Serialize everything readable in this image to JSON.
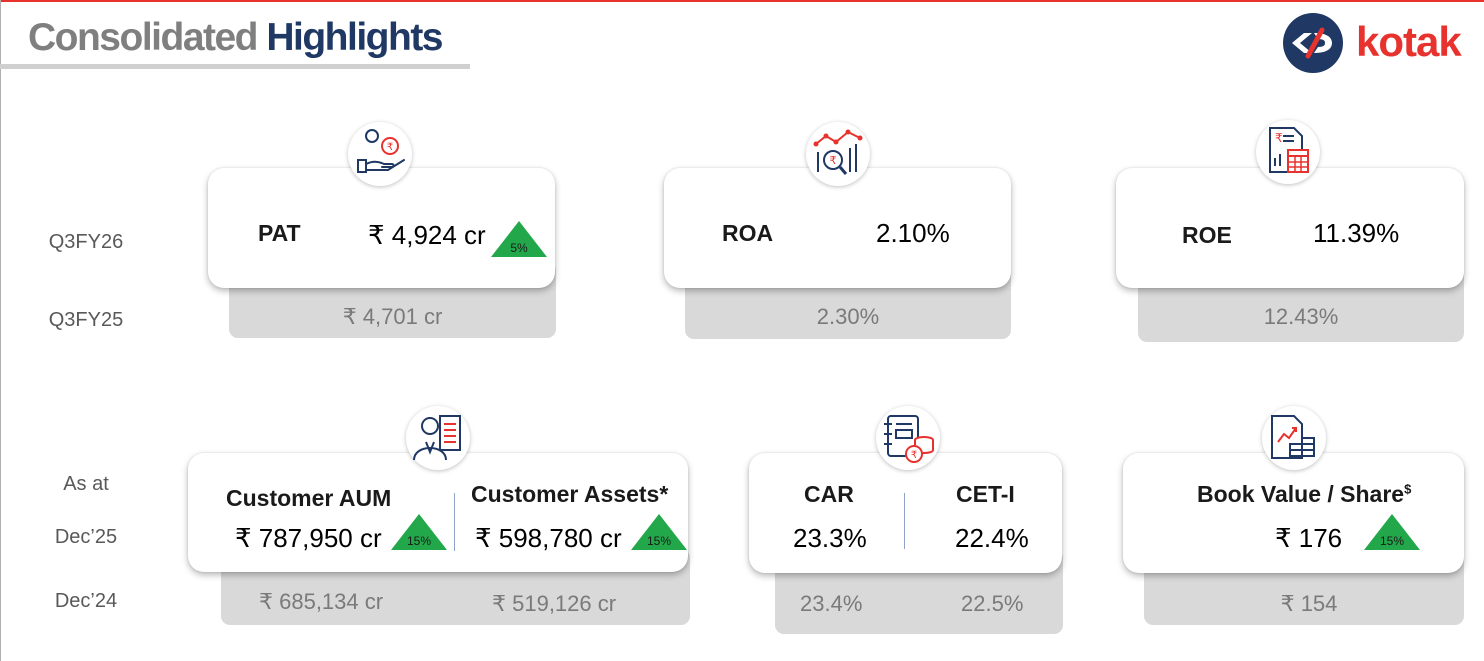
{
  "header": {
    "title_part1": "Consolidated",
    "title_part2": "Highlights",
    "logo_text": "kotak"
  },
  "row_labels": {
    "current_q": "Q3FY26",
    "prior_q": "Q3FY25",
    "as_at": "As at",
    "current_date": "Dec’25",
    "prior_date": "Dec’24"
  },
  "pat": {
    "label": "PAT",
    "value": "₹ 4,924 cr",
    "growth": "5%",
    "prior": "₹ 4,701 cr",
    "icon": "hand-rupee-coins-icon"
  },
  "roa": {
    "label": "ROA",
    "value": "2.10%",
    "prior": "2.30%",
    "icon": "chart-magnifier-rupee-icon"
  },
  "roe": {
    "label": "ROE",
    "value": "11.39%",
    "prior": "12.43%",
    "icon": "document-calculator-icon"
  },
  "customer_aum": {
    "label": "Customer AUM",
    "value": "₹ 787,950 cr",
    "growth": "15%",
    "prior": "₹ 685,134 cr",
    "icon": "person-document-icon"
  },
  "customer_assets": {
    "label": "Customer Assets*",
    "value": "₹ 598,780 cr",
    "growth": "15%",
    "prior": "₹ 519,126 cr"
  },
  "car": {
    "label": "CAR",
    "value": "23.3%",
    "prior": "23.4%",
    "icon": "ledger-coins-icon"
  },
  "cet1": {
    "label": "CET-I",
    "value": "22.4%",
    "prior": "22.5%"
  },
  "book_value": {
    "label": "Book Value / Share",
    "superscript": "$",
    "value": "₹ 176",
    "growth": "15%",
    "prior": "₹ 154",
    "icon": "document-chart-icon"
  },
  "colors": {
    "accent_red": "#e8322e",
    "navy": "#1f3864",
    "growth_green": "#22a84a",
    "panel_gray": "#d9d9d9"
  }
}
